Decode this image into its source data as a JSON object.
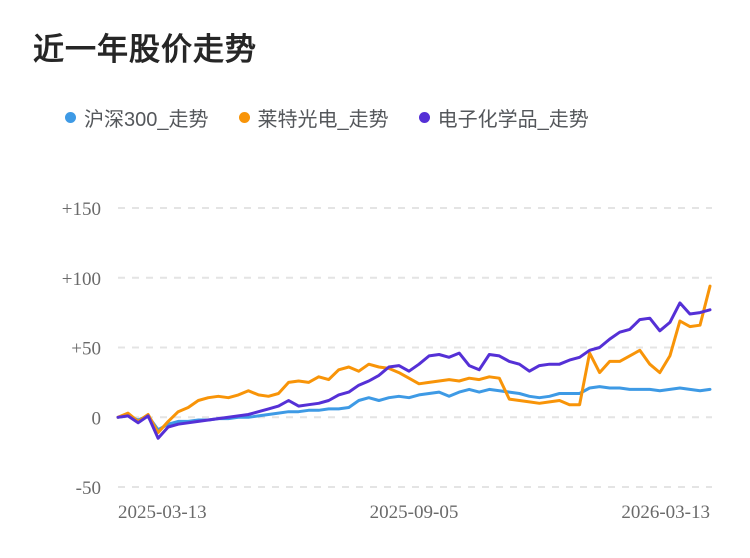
{
  "title": "近一年股价走势",
  "chart_data": {
    "type": "line",
    "title": "近一年股价走势",
    "unit": "percent_change_vs_start",
    "ylim": [
      -50,
      150
    ],
    "grid": "horizontal-dashed",
    "legend_position": "top-left",
    "background": "#ffffff",
    "grid_color": "#e4e4e4",
    "y_ticks": [
      {
        "label": "+150",
        "value": 150
      },
      {
        "label": "+100",
        "value": 100
      },
      {
        "label": "+50",
        "value": 50
      },
      {
        "label": "0",
        "value": 0
      },
      {
        "label": "-50",
        "value": -50
      }
    ],
    "x_ticks": [
      "2025-03-13",
      "2025-09-05",
      "2026-03-13"
    ],
    "series": [
      {
        "name": "沪深300_走势",
        "color": "#3e9ae5",
        "values": [
          0,
          1,
          -2,
          1,
          -9,
          -5,
          -3,
          -3,
          -2,
          -2,
          -1,
          -1,
          0,
          0,
          1,
          2,
          3,
          4,
          4,
          5,
          5,
          6,
          6,
          7,
          12,
          14,
          12,
          14,
          15,
          14,
          16,
          17,
          18,
          15,
          18,
          20,
          18,
          20,
          19,
          18,
          17,
          15,
          14,
          15,
          17,
          17,
          17,
          21,
          22,
          21,
          21,
          20,
          20,
          20,
          19,
          20,
          21,
          20,
          19,
          20
        ]
      },
      {
        "name": "莱特光电_走势",
        "color": "#f89408",
        "values": [
          0,
          3,
          -3,
          2,
          -11,
          -3,
          4,
          7,
          12,
          14,
          15,
          14,
          16,
          19,
          16,
          15,
          17,
          25,
          26,
          25,
          29,
          27,
          34,
          36,
          33,
          38,
          36,
          35,
          32,
          28,
          24,
          25,
          26,
          27,
          26,
          28,
          27,
          29,
          28,
          13,
          12,
          11,
          10,
          11,
          12,
          9,
          9,
          46,
          32,
          40,
          40,
          44,
          48,
          38,
          32,
          44,
          69,
          65,
          66,
          94
        ]
      },
      {
        "name": "电子化学品_走势",
        "color": "#5530d6",
        "values": [
          0,
          1,
          -4,
          1,
          -15,
          -7,
          -5,
          -4,
          -3,
          -2,
          -1,
          0,
          1,
          2,
          4,
          6,
          8,
          12,
          8,
          9,
          10,
          12,
          16,
          18,
          23,
          26,
          30,
          36,
          37,
          33,
          38,
          44,
          45,
          43,
          46,
          37,
          34,
          45,
          44,
          40,
          38,
          33,
          37,
          38,
          38,
          41,
          43,
          48,
          50,
          56,
          61,
          63,
          70,
          71,
          62,
          68,
          82,
          74,
          75,
          77
        ]
      }
    ]
  }
}
